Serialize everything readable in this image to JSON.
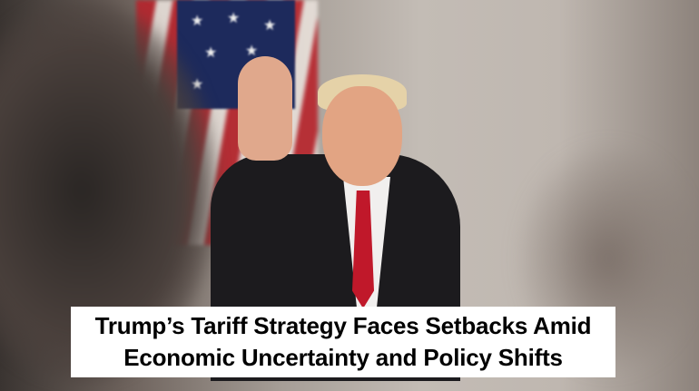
{
  "headline": {
    "line1": "Trump’s Tariff Strategy Faces Setbacks Amid",
    "line2": "Economic Uncertainty and Policy Shifts"
  },
  "colors": {
    "caption_background": "#ffffff",
    "caption_text": "#000000",
    "tie": "#c0182a",
    "flag_blue": "#1d2a5c"
  }
}
